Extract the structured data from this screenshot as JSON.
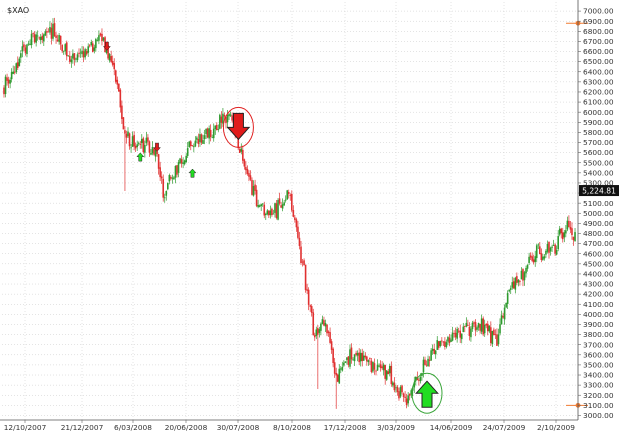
{
  "chart_data": {
    "type": "candlestick",
    "title": "$XAO",
    "xlabel": "",
    "ylabel": "",
    "ylim": [
      2955,
      7090
    ],
    "grid": true,
    "y_ticks": [
      3000,
      3100,
      3200,
      3300,
      3400,
      3500,
      3600,
      3700,
      3800,
      3900,
      4000,
      4100,
      4200,
      4300,
      4400,
      4500,
      4600,
      4700,
      4800,
      4900,
      5000,
      5100,
      5200,
      5300,
      5400,
      5500,
      5600,
      5700,
      5800,
      5900,
      6000,
      6100,
      6200,
      6300,
      6400,
      6500,
      6600,
      6700,
      6800,
      6900,
      7000
    ],
    "y_tick_labels": [
      "3000.00",
      "3100.00",
      "3200.00",
      "3300.00",
      "3400.00",
      "3500.00",
      "3600.00",
      "3700.00",
      "3800.00",
      "3900.00",
      "4000.00",
      "4100.00",
      "4200.00",
      "4300.00",
      "4400.00",
      "4500.00",
      "4600.00",
      "4700.00",
      "4800.00",
      "4900.00",
      "5000.00",
      "5100.00",
      "5200.00",
      "5300.00",
      "5400.00",
      "5500.00",
      "5600.00",
      "5700.00",
      "5800.00",
      "5900.00",
      "6000.00",
      "6100.00",
      "6200.00",
      "6300.00",
      "6400.00",
      "6500.00",
      "6600.00",
      "6700.00",
      "6800.00",
      "6900.00",
      "7000.00"
    ],
    "x_tick_labels": [
      "12/10/2007",
      "21/12/2007",
      "6/03/2008",
      "20/06/2008",
      "30/07/2008",
      "8/10/2008",
      "17/12/2008",
      "3/03/2009",
      "14/06/2009",
      "24/07/2009",
      "2/10/2009"
    ],
    "last_value": 5224.81,
    "last_value_label": "5,224.81",
    "price_path": [
      {
        "x": "2007-08-01",
        "y": 6250
      },
      {
        "x": "2007-09-05",
        "y": 6700
      },
      {
        "x": "2007-10-12",
        "y": 6800
      },
      {
        "x": "2007-11-01",
        "y": 6550
      },
      {
        "x": "2007-11-25",
        "y": 6600
      },
      {
        "x": "2007-12-21",
        "y": 6750
      },
      {
        "x": "2008-01-10",
        "y": 6300
      },
      {
        "x": "2008-01-22",
        "y": 5800
      },
      {
        "x": "2008-02-05",
        "y": 5650
      },
      {
        "x": "2008-02-18",
        "y": 5700
      },
      {
        "x": "2008-03-06",
        "y": 5600
      },
      {
        "x": "2008-03-18",
        "y": 5200
      },
      {
        "x": "2008-04-05",
        "y": 5450
      },
      {
        "x": "2008-05-01",
        "y": 5700
      },
      {
        "x": "2008-05-25",
        "y": 5800
      },
      {
        "x": "2008-06-20",
        "y": 6000
      },
      {
        "x": "2008-07-01",
        "y": 5750
      },
      {
        "x": "2008-07-15",
        "y": 5450
      },
      {
        "x": "2008-07-30",
        "y": 5100
      },
      {
        "x": "2008-08-15",
        "y": 5000
      },
      {
        "x": "2008-09-01",
        "y": 5050
      },
      {
        "x": "2008-09-15",
        "y": 5200
      },
      {
        "x": "2008-09-25",
        "y": 4800
      },
      {
        "x": "2008-10-08",
        "y": 4300
      },
      {
        "x": "2008-10-20",
        "y": 3800
      },
      {
        "x": "2008-11-05",
        "y": 3900
      },
      {
        "x": "2008-11-20",
        "y": 3400
      },
      {
        "x": "2008-12-01",
        "y": 3450
      },
      {
        "x": "2008-12-17",
        "y": 3650
      },
      {
        "x": "2009-01-10",
        "y": 3500
      },
      {
        "x": "2009-02-05",
        "y": 3400
      },
      {
        "x": "2009-02-20",
        "y": 3250
      },
      {
        "x": "2009-03-03",
        "y": 3150
      },
      {
        "x": "2009-03-20",
        "y": 3400
      },
      {
        "x": "2009-04-15",
        "y": 3700
      },
      {
        "x": "2009-05-10",
        "y": 3800
      },
      {
        "x": "2009-06-14",
        "y": 3900
      },
      {
        "x": "2009-07-10",
        "y": 3750
      },
      {
        "x": "2009-07-24",
        "y": 4200
      },
      {
        "x": "2009-08-15",
        "y": 4400
      },
      {
        "x": "2009-09-05",
        "y": 4600
      },
      {
        "x": "2009-10-02",
        "y": 4700
      },
      {
        "x": "2009-10-20",
        "y": 4900
      },
      {
        "x": "2009-10-31",
        "y": 4750
      }
    ],
    "signals": [
      {
        "x": "2007-12-24",
        "y": 6650,
        "type": "sell",
        "size": "small",
        "circled": false
      },
      {
        "x": "2008-02-10",
        "y": 5560,
        "type": "buy",
        "size": "small",
        "circled": false
      },
      {
        "x": "2008-03-05",
        "y": 5650,
        "type": "sell",
        "size": "small",
        "circled": false
      },
      {
        "x": "2008-04-25",
        "y": 5400,
        "type": "buy",
        "size": "small",
        "circled": false
      },
      {
        "x": "2008-06-30",
        "y": 5850,
        "type": "sell",
        "size": "large",
        "circled": true
      },
      {
        "x": "2009-03-28",
        "y": 3220,
        "type": "buy",
        "size": "large",
        "circled": true
      }
    ],
    "right_markers": [
      {
        "y": 6880
      },
      {
        "y": 3100
      }
    ],
    "colors": {
      "up": "#2e9a2e",
      "down": "#e03030",
      "grid": "#c8c8c8",
      "sell_arrow": "#e01b1b",
      "buy_arrow": "#22dd22",
      "circle_sell": "#e02020",
      "circle_buy": "#3aa53a",
      "marker": "#f07a30",
      "last_box": "#111111"
    }
  }
}
